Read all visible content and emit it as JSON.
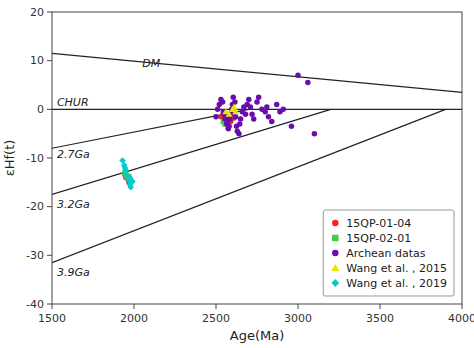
{
  "chart_data": {
    "type": "scatter",
    "x_label": "Age(Ma)",
    "y_label": "εHf(t)",
    "xlim": [
      1500,
      4000
    ],
    "ylim": [
      -40,
      20
    ],
    "xticks": [
      1500,
      2000,
      2500,
      3000,
      3500,
      4000
    ],
    "yticks": [
      -40,
      -30,
      -20,
      -10,
      0,
      10,
      20
    ],
    "grid": false,
    "legend": "lower right",
    "reference_lines": [
      {
        "label": "DM",
        "x": [
          1500,
          4000
        ],
        "y": [
          11.5,
          3.5
        ],
        "label_x": 2050,
        "label_y": 9.5
      },
      {
        "label": "CHUR",
        "x": [
          1500,
          4000
        ],
        "y": [
          0.0,
          0.0
        ],
        "label_x": 1530,
        "label_y": 1.5
      },
      {
        "label": "2.7Ga",
        "x": [
          1500,
          2700
        ],
        "y": [
          -8.0,
          0.0
        ],
        "label_x": 1530,
        "label_y": -9.2
      },
      {
        "label": "3.2Ga",
        "x": [
          1500,
          3200
        ],
        "y": [
          -17.5,
          0.0
        ],
        "label_x": 1530,
        "label_y": -19.5
      },
      {
        "label": "3.9Ga",
        "x": [
          1500,
          3900
        ],
        "y": [
          -31.5,
          0.0
        ],
        "label_x": 1530,
        "label_y": -33.5
      }
    ],
    "series": [
      {
        "name": "15QP-01-04",
        "color": "#ff2020",
        "marker": "circle",
        "x": [
          2530,
          2545,
          2560,
          2570,
          2580,
          2590,
          2610,
          1945,
          1950,
          1960,
          1965,
          1970,
          1975
        ],
        "values": [
          -1.5,
          -0.8,
          -1.2,
          -2.0,
          -1.0,
          -2.5,
          -1.8,
          -13.5,
          -14.0,
          -13.8,
          -14.5,
          -15.0,
          -14.2
        ]
      },
      {
        "name": "15QP-02-01",
        "color": "#44cc44",
        "marker": "square",
        "x": [
          2545,
          2555,
          2565,
          2575,
          1945,
          1950,
          1960,
          1968,
          1975
        ],
        "values": [
          -2.5,
          -3.0,
          -2.0,
          -3.5,
          -13.0,
          -13.5,
          -14.0,
          -13.8,
          -14.5
        ]
      },
      {
        "name": "Archean datas",
        "color": "#6a0dad",
        "marker": "circle",
        "x": [
          2500,
          2510,
          2520,
          2530,
          2540,
          2545,
          2550,
          2555,
          2560,
          2565,
          2570,
          2575,
          2580,
          2585,
          2590,
          2595,
          2600,
          2605,
          2610,
          2615,
          2620,
          2625,
          2630,
          2640,
          2645,
          2650,
          2660,
          2670,
          2680,
          2690,
          2700,
          2710,
          2720,
          2730,
          2750,
          2760,
          2780,
          2800,
          2810,
          2820,
          2840,
          2870,
          2890,
          2910,
          2960,
          3000,
          3060,
          3100
        ],
        "values": [
          -1.5,
          0.0,
          1.0,
          2.0,
          1.5,
          -0.5,
          -1.0,
          -2.0,
          -1.5,
          -3.0,
          -2.5,
          -4.0,
          -3.5,
          -2.0,
          -1.0,
          0.0,
          1.0,
          2.5,
          -0.5,
          1.5,
          -1.5,
          -3.5,
          -4.5,
          -5.0,
          -3.0,
          -2.0,
          -0.5,
          0.5,
          -1.0,
          1.0,
          2.0,
          0.5,
          -1.0,
          -2.0,
          1.5,
          2.5,
          0.0,
          -0.5,
          0.5,
          -1.5,
          -2.5,
          1.0,
          -0.5,
          0.0,
          -3.5,
          7.0,
          5.5,
          -5.0
        ]
      },
      {
        "name": "Wang et al. , 2015",
        "color": "#e8e800",
        "marker": "triangle",
        "x": [
          2560,
          2580,
          2600,
          2610,
          2620
        ],
        "values": [
          -0.5,
          -1.0,
          0.0,
          0.5,
          -0.5
        ]
      },
      {
        "name": "Wang et al. , 2019",
        "color": "#00cccc",
        "marker": "diamond",
        "x": [
          1930,
          1940,
          1945,
          1950,
          1955,
          1960,
          1965,
          1970,
          1975,
          1980,
          1985,
          1990
        ],
        "values": [
          -10.5,
          -11.5,
          -12.0,
          -12.5,
          -13.5,
          -14.0,
          -13.8,
          -14.5,
          -15.5,
          -16.0,
          -15.0,
          -14.8
        ]
      }
    ]
  }
}
